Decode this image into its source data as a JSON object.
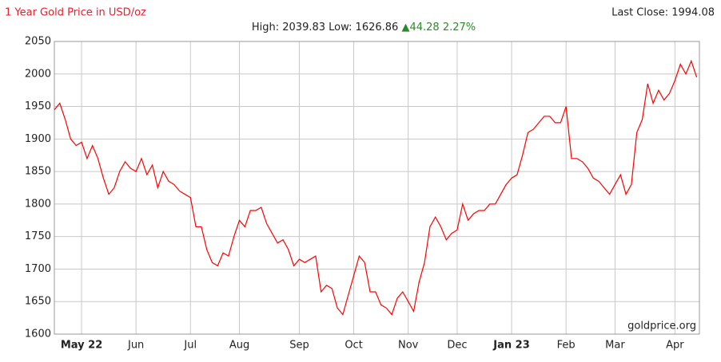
{
  "chart_data": {
    "type": "line",
    "title": "1 Year Gold Price in USD/oz",
    "stats": "High: 2039.83 Low: 1626.86",
    "change": "▲44.28 2.27%",
    "last_close": "Last Close: 1994.08",
    "watermark": "goldprice.org",
    "grid": true,
    "ylim": [
      1600,
      2050
    ],
    "yticks": [
      1600,
      1650,
      1700,
      1750,
      1800,
      1850,
      1900,
      1950,
      2000,
      2050
    ],
    "categories": [
      null,
      null,
      null,
      null,
      null,
      "May 22",
      null,
      null,
      null,
      null,
      null,
      null,
      null,
      null,
      null,
      "Jun",
      null,
      null,
      null,
      null,
      null,
      null,
      null,
      null,
      null,
      "Jul",
      null,
      null,
      null,
      null,
      null,
      null,
      null,
      null,
      "Aug",
      null,
      null,
      null,
      null,
      null,
      null,
      null,
      null,
      null,
      null,
      "Sep",
      null,
      null,
      null,
      null,
      null,
      null,
      null,
      null,
      null,
      "Oct",
      null,
      null,
      null,
      null,
      null,
      null,
      null,
      null,
      null,
      "Nov",
      null,
      null,
      null,
      null,
      null,
      null,
      null,
      null,
      "Dec",
      null,
      null,
      null,
      null,
      null,
      null,
      null,
      null,
      null,
      "Jan 23",
      null,
      null,
      null,
      null,
      null,
      null,
      null,
      null,
      null,
      "Feb",
      null,
      null,
      null,
      null,
      null,
      null,
      null,
      null,
      "Mar",
      null,
      null,
      null,
      null,
      null,
      null,
      null,
      null,
      null,
      null,
      "Apr",
      null,
      null,
      null,
      null
    ],
    "series": [
      {
        "color": "#ff0000",
        "values": [
          1945,
          1955,
          1930,
          1900,
          1890,
          1895,
          1870,
          1890,
          1870,
          1840,
          1815,
          1825,
          1850,
          1865,
          1855,
          1850,
          1870,
          1845,
          1860,
          1825,
          1850,
          1835,
          1830,
          1820,
          1815,
          1810,
          1765,
          1765,
          1730,
          1710,
          1705,
          1725,
          1720,
          1750,
          1775,
          1765,
          1790,
          1790,
          1795,
          1770,
          1755,
          1740,
          1745,
          1730,
          1705,
          1715,
          1710,
          1715,
          1720,
          1665,
          1675,
          1670,
          1640,
          1630,
          1660,
          1690,
          1720,
          1710,
          1665,
          1665,
          1645,
          1640,
          1630,
          1655,
          1665,
          1650,
          1635,
          1680,
          1710,
          1765,
          1780,
          1765,
          1745,
          1755,
          1760,
          1800,
          1775,
          1785,
          1790,
          1790,
          1800,
          1800,
          1815,
          1830,
          1840,
          1845,
          1875,
          1910,
          1915,
          1925,
          1935,
          1935,
          1925,
          1925,
          1950,
          1870,
          1870,
          1865,
          1855,
          1840,
          1835,
          1825,
          1815,
          1830,
          1845,
          1815,
          1830,
          1910,
          1930,
          1985,
          1955,
          1975,
          1960,
          1970,
          1990,
          2015,
          2000,
          2020,
          1995
        ]
      }
    ]
  }
}
